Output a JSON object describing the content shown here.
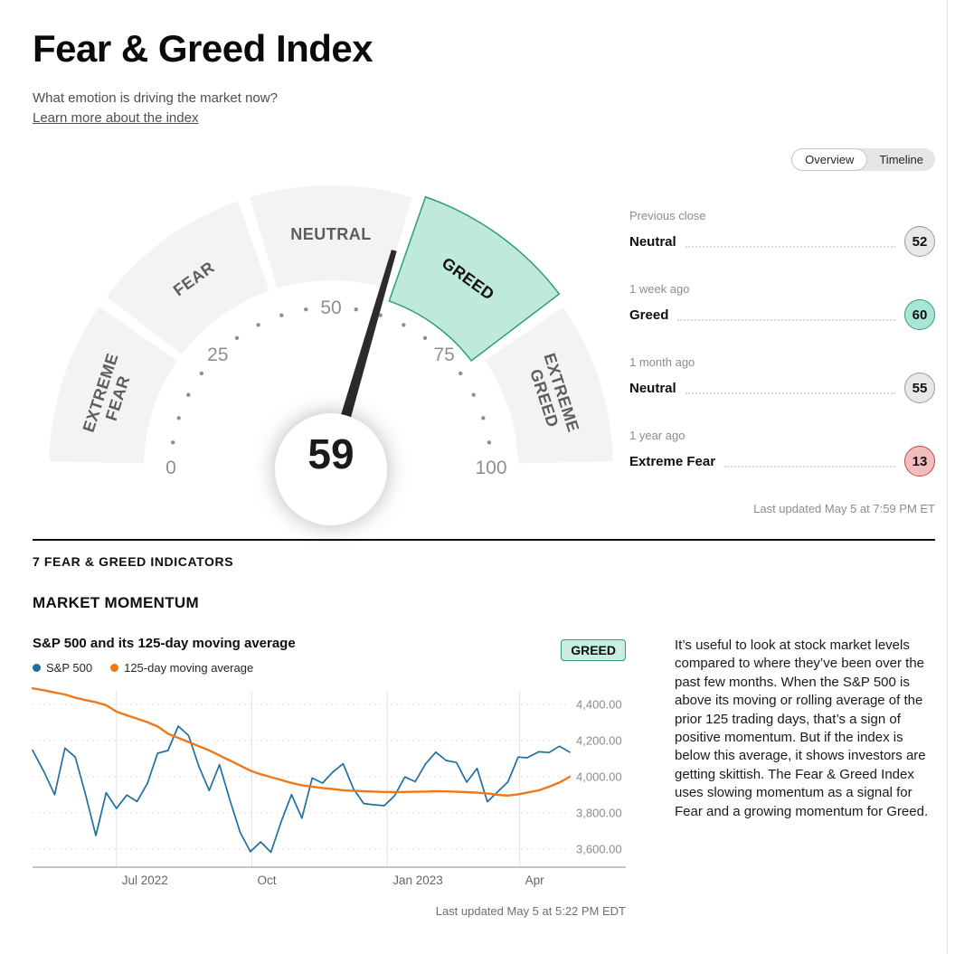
{
  "page": {
    "title": "Fear & Greed Index",
    "subtitle": "What emotion is driving the market now?",
    "link": "Learn more about the index",
    "right_rail_updated": "Last updated May 5 at 7:59 PM ET"
  },
  "toggle": {
    "options": [
      "Overview",
      "Timeline"
    ],
    "selected": "Overview"
  },
  "gauge": {
    "value": 59,
    "active_segment": "GREED",
    "segments": [
      {
        "id": "extreme-fear",
        "lines": [
          "EXTREME",
          "FEAR"
        ]
      },
      {
        "id": "fear",
        "lines": [
          "FEAR"
        ]
      },
      {
        "id": "neutral",
        "lines": [
          "NEUTRAL"
        ]
      },
      {
        "id": "greed",
        "lines": [
          "GREED"
        ]
      },
      {
        "id": "extreme-greed",
        "lines": [
          "EXTREME",
          "GREED"
        ]
      }
    ],
    "tick_numbers": [
      0,
      25,
      50,
      75,
      100
    ],
    "colors": {
      "segment": "#f3f3f3",
      "active_fill": "#c0e9dd",
      "active_stroke": "#2da06f",
      "needle": "#2b2b2b",
      "label": "#5d5d5d",
      "active_label": "#111111",
      "ticks": "#8f8f8f"
    }
  },
  "history": {
    "rows": [
      {
        "period": "Previous close",
        "label": "Neutral",
        "value": 52,
        "tone": "neutral"
      },
      {
        "period": "1 week ago",
        "label": "Greed",
        "value": 60,
        "tone": "greed"
      },
      {
        "period": "1 month ago",
        "label": "Neutral",
        "value": 55,
        "tone": "neutral"
      },
      {
        "period": "1 year ago",
        "label": "Extreme Fear",
        "value": 13,
        "tone": "extreme-fear"
      }
    ],
    "tones": {
      "neutral": {
        "fill": "#e8e8e8",
        "stroke": "#9b9b9b"
      },
      "greed": {
        "fill": "#a9e6d5",
        "stroke": "#2da06f"
      },
      "extreme-fear": {
        "fill": "#f4bdbd",
        "stroke": "#cf4446"
      }
    }
  },
  "indicators": {
    "section_title": "7 FEAR & GREED INDICATORS",
    "momentum_title": "MARKET MOMENTUM"
  },
  "momentum": {
    "chart_title": "S&P 500 and its 125-day moving average",
    "status_badge": "GREED",
    "updated": "Last updated May 5 at 5:22 PM EDT",
    "description": "It’s useful to look at stock market levels compared to where they’ve been over the past few months. When the S&P 500 is above its moving or rolling average of the prior 125 trading days, that’s a sign of positive momentum. But if the index is below this average, it shows investors are getting skittish. The Fear & Greed Index uses slowing momentum as a signal for Fear and a growing momentum for Greed.",
    "chart_data": {
      "type": "line",
      "title": "S&P 500 and its 125-day moving average",
      "x_range": [
        "2022-05-05",
        "2023-05-05"
      ],
      "ylim": [
        3500,
        4505
      ],
      "grid": {
        "horizontal": "dashed",
        "vertical": "solid"
      },
      "legend_position": "top-left",
      "y_ticks": [
        {
          "value": 4400,
          "label": "4,400.00"
        },
        {
          "value": 4200,
          "label": "4,200.00"
        },
        {
          "value": 4000,
          "label": "4,000.00"
        },
        {
          "value": 3800,
          "label": "3,800.00"
        },
        {
          "value": 3600,
          "label": "3,600.00"
        }
      ],
      "x_ticks": [
        {
          "date": "2022-07-01",
          "label": "Jul 2022"
        },
        {
          "date": "2022-10-01",
          "label": "Oct"
        },
        {
          "date": "2023-01-01",
          "label": "Jan 2023"
        },
        {
          "date": "2023-04-01",
          "label": "Apr"
        }
      ],
      "dates": [
        "2022-05-05",
        "2022-05-13",
        "2022-05-20",
        "2022-05-27",
        "2022-06-03",
        "2022-06-10",
        "2022-06-17",
        "2022-06-24",
        "2022-07-01",
        "2022-07-08",
        "2022-07-15",
        "2022-07-22",
        "2022-07-29",
        "2022-08-05",
        "2022-08-12",
        "2022-08-19",
        "2022-08-26",
        "2022-09-02",
        "2022-09-09",
        "2022-09-16",
        "2022-09-23",
        "2022-09-30",
        "2022-10-07",
        "2022-10-14",
        "2022-10-21",
        "2022-10-28",
        "2022-11-04",
        "2022-11-11",
        "2022-11-18",
        "2022-11-25",
        "2022-12-02",
        "2022-12-09",
        "2022-12-16",
        "2022-12-23",
        "2022-12-30",
        "2023-01-06",
        "2023-01-13",
        "2023-01-20",
        "2023-01-27",
        "2023-02-03",
        "2023-02-10",
        "2023-02-17",
        "2023-02-24",
        "2023-03-03",
        "2023-03-10",
        "2023-03-17",
        "2023-03-24",
        "2023-03-31",
        "2023-04-06",
        "2023-04-14",
        "2023-04-21",
        "2023-04-28",
        "2023-05-05"
      ],
      "series": [
        {
          "name": "S&P 500",
          "color": "#1f6f9f",
          "values": [
            4147,
            4024,
            3901,
            4158,
            4109,
            3901,
            3675,
            3912,
            3825,
            3899,
            3863,
            3962,
            4130,
            4145,
            4280,
            4228,
            4058,
            3924,
            4067,
            3873,
            3693,
            3586,
            3640,
            3583,
            3753,
            3901,
            3771,
            3993,
            3965,
            4026,
            4072,
            3934,
            3852,
            3845,
            3840,
            3895,
            3999,
            3973,
            4071,
            4136,
            4090,
            4079,
            3970,
            4046,
            3862,
            3917,
            3971,
            4109,
            4105,
            4138,
            4134,
            4169,
            4136
          ]
        },
        {
          "name": "125-day moving average",
          "color": "#f07819",
          "values": [
            4489,
            4478,
            4466,
            4455,
            4437,
            4424,
            4412,
            4396,
            4360,
            4340,
            4321,
            4302,
            4278,
            4238,
            4215,
            4192,
            4169,
            4146,
            4118,
            4090,
            4062,
            4034,
            4014,
            3998,
            3982,
            3966,
            3953,
            3945,
            3938,
            3932,
            3925,
            3922,
            3920,
            3918,
            3916,
            3915,
            3916,
            3917,
            3918,
            3920,
            3919,
            3917,
            3915,
            3912,
            3908,
            3900,
            3896,
            3903,
            3912,
            3925,
            3945,
            3968,
            4000
          ]
        }
      ]
    }
  }
}
